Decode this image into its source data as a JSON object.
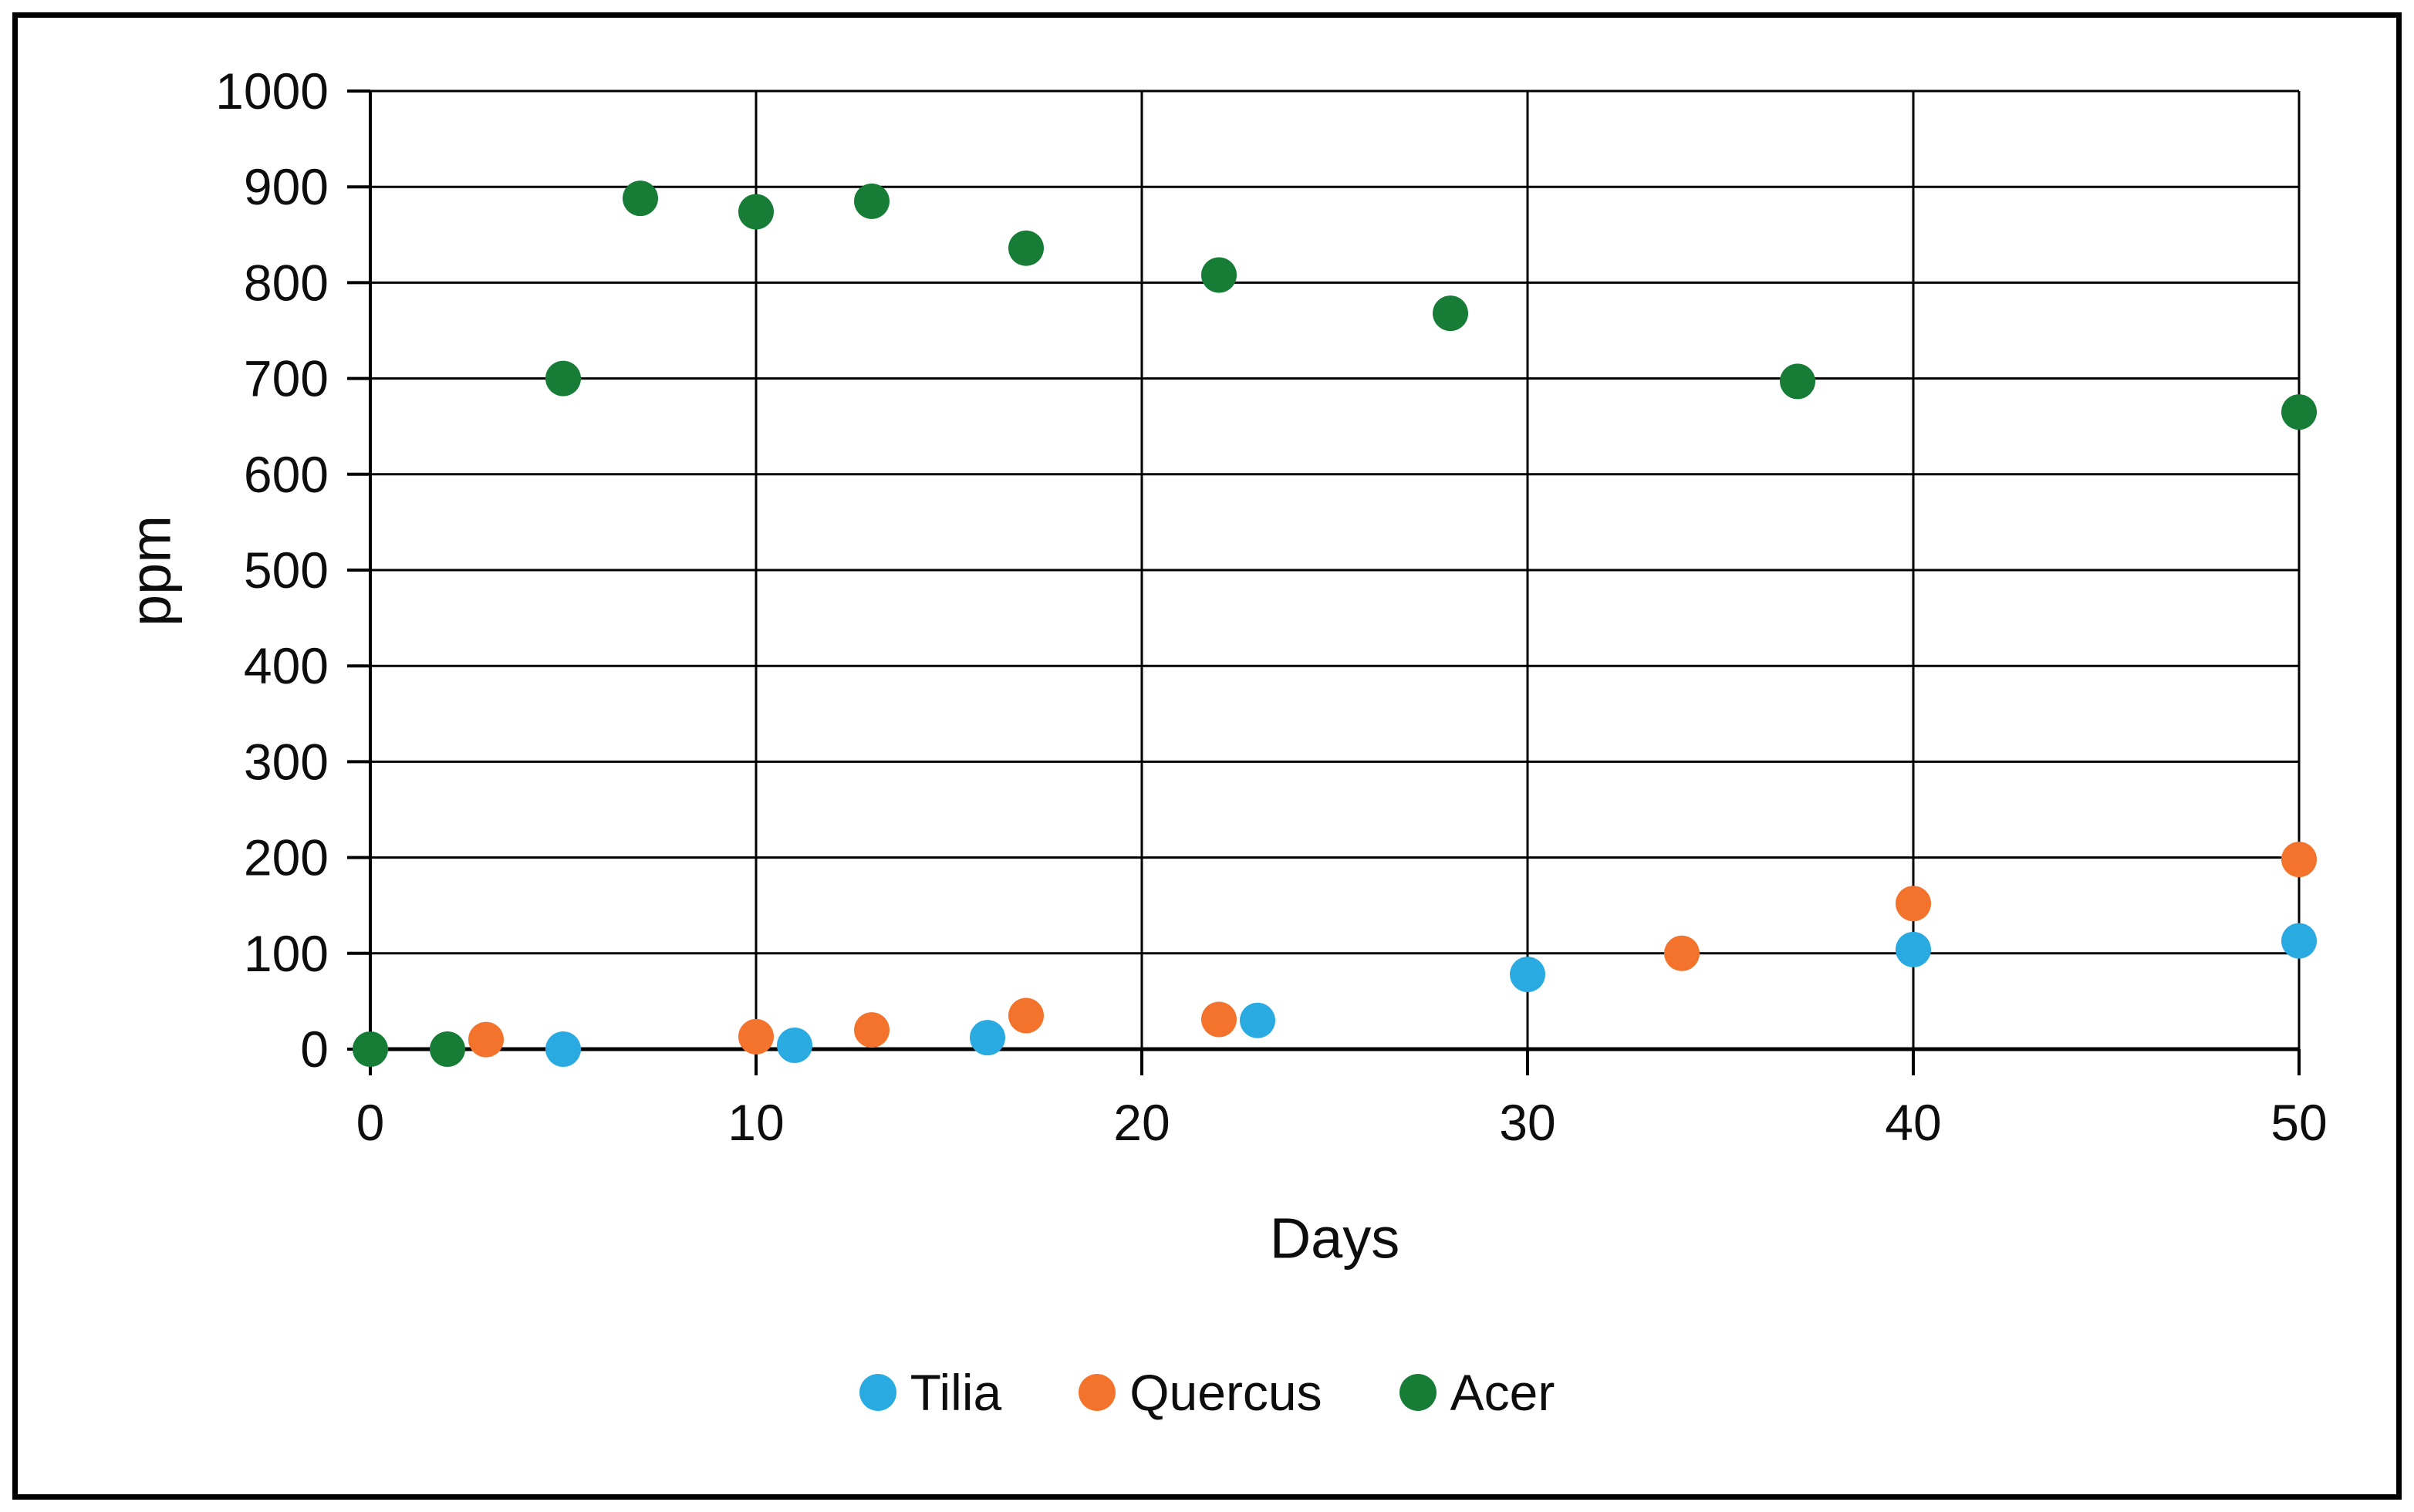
{
  "frame": {
    "background": "#FFFFFF",
    "border_color": "#000000"
  },
  "chart_data": {
    "type": "scatter",
    "title": "",
    "xlabel": "Days",
    "ylabel": "ppm",
    "xlim": [
      0,
      50
    ],
    "ylim": [
      0,
      1000
    ],
    "xticks": [
      0,
      10,
      20,
      30,
      40,
      50
    ],
    "yticks": [
      0,
      100,
      200,
      300,
      400,
      500,
      600,
      700,
      800,
      900,
      1000
    ],
    "grid": true,
    "legend_position": "bottom-center",
    "marker": "circle",
    "series": [
      {
        "name": "Tilia",
        "color": "#29ABE2",
        "points": [
          [
            5,
            0
          ],
          [
            11,
            4
          ],
          [
            16,
            12
          ],
          [
            23,
            30
          ],
          [
            30,
            78
          ],
          [
            40,
            104
          ],
          [
            50,
            113
          ]
        ]
      },
      {
        "name": "Quercus",
        "color": "#F4732C",
        "points": [
          [
            3,
            10
          ],
          [
            10,
            13
          ],
          [
            13,
            20
          ],
          [
            17,
            35
          ],
          [
            22,
            31
          ],
          [
            34,
            100
          ],
          [
            40,
            152
          ],
          [
            50,
            198
          ]
        ]
      },
      {
        "name": "Acer",
        "color": "#177D36",
        "points": [
          [
            0,
            0
          ],
          [
            2,
            0
          ],
          [
            5,
            700
          ],
          [
            7,
            888
          ],
          [
            10,
            874
          ],
          [
            13,
            885
          ],
          [
            17,
            836
          ],
          [
            22,
            808
          ],
          [
            28,
            768
          ],
          [
            37,
            697
          ],
          [
            50,
            665
          ]
        ]
      }
    ]
  }
}
